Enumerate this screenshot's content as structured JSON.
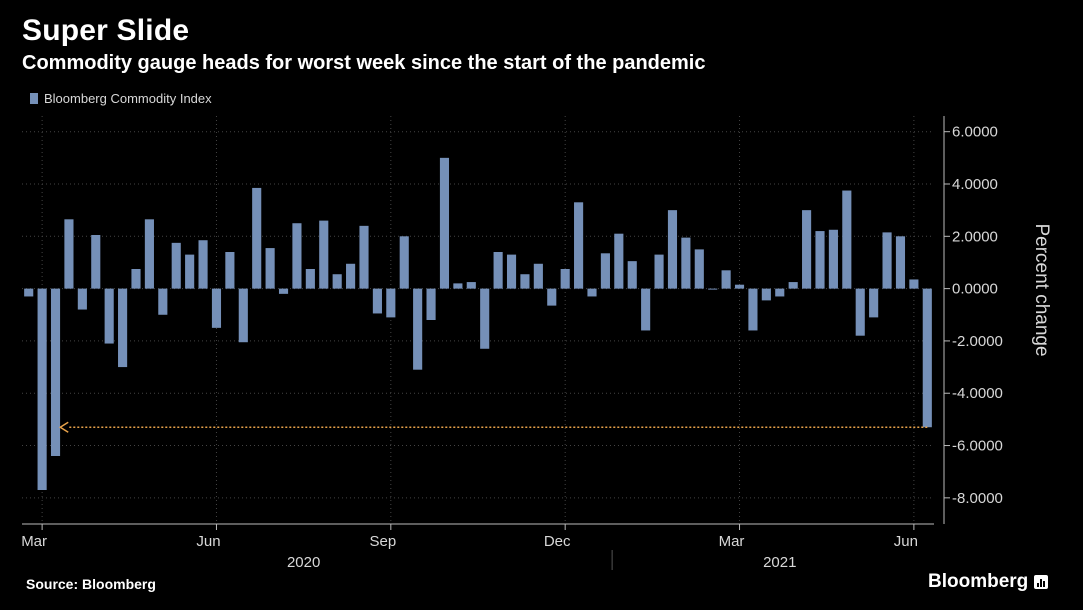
{
  "title": "Super Slide",
  "subtitle": "Commodity gauge heads for worst week since the start of the pandemic",
  "legend": {
    "label": "Bloomberg Commodity Index",
    "color": "#7590b8"
  },
  "source": "Source: Bloomberg",
  "brand": "Bloomberg",
  "colors": {
    "background": "#000000",
    "bar": "#7590b8",
    "annotation": "#e8a24a",
    "grid": "#444444",
    "text": "#d8d8d8"
  },
  "chart_data": {
    "type": "bar",
    "series": [
      {
        "name": "Bloomberg Commodity Index",
        "values": [
          -0.3,
          -7.7,
          -6.4,
          2.65,
          -0.8,
          2.05,
          -2.1,
          -3.0,
          0.75,
          2.65,
          -1.0,
          1.75,
          1.3,
          1.85,
          -1.5,
          1.4,
          -2.05,
          3.85,
          1.55,
          -0.2,
          2.5,
          0.75,
          2.6,
          0.55,
          0.95,
          2.4,
          -0.95,
          -1.1,
          2.0,
          -3.1,
          -1.2,
          5.0,
          0.2,
          0.25,
          -2.3,
          1.4,
          1.3,
          0.55,
          0.95,
          -0.65,
          0.75,
          3.3,
          -0.3,
          1.35,
          2.1,
          1.05,
          -1.6,
          1.3,
          3.0,
          1.95,
          1.5,
          0.0,
          0.7,
          0.15,
          -1.6,
          -0.45,
          -0.3,
          0.25,
          3.0,
          2.2,
          2.25,
          3.75,
          -1.8,
          -1.1,
          2.15,
          2.0,
          0.35,
          -5.3
        ]
      }
    ],
    "ylabel": "Percent change",
    "ylim": [
      -9,
      6.6
    ],
    "yticks": [
      6,
      4,
      2,
      0,
      -2,
      -4,
      -6,
      -8
    ],
    "ytick_labels": [
      "6.0000",
      "4.0000",
      "2.0000",
      "0.0000",
      "-2.0000",
      "-4.0000",
      "-6.0000",
      "-8.0000"
    ],
    "x_month_labels": [
      {
        "label": "Mar",
        "index": 1.5
      },
      {
        "label": "Jun",
        "index": 14.5
      },
      {
        "label": "Sep",
        "index": 27.5
      },
      {
        "label": "Dec",
        "index": 40.5
      },
      {
        "label": "Mar",
        "index": 53.5
      },
      {
        "label": "Jun",
        "index": 66.5
      }
    ],
    "x_year_labels": [
      {
        "label": "2020",
        "index": 21
      },
      {
        "label": "2021",
        "index": 56.5
      }
    ],
    "annotation": {
      "type": "arrow",
      "from_index": 67,
      "to_index": 2.5,
      "y": -5.3
    },
    "grid": true,
    "legend_position": "top-left"
  }
}
